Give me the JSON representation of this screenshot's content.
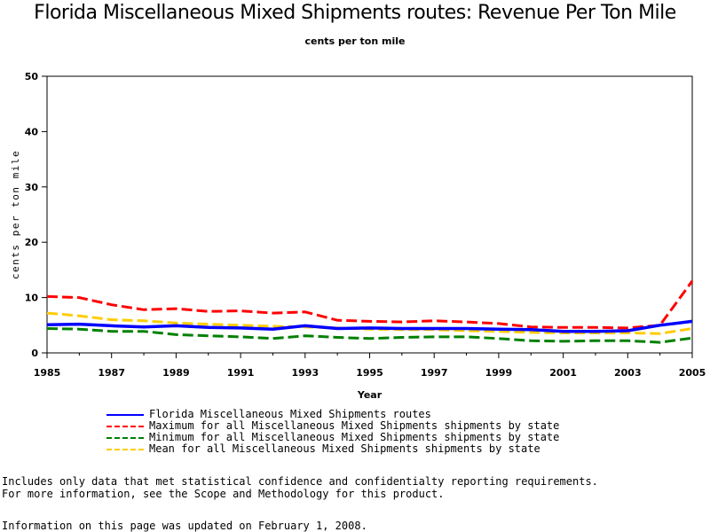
{
  "chart_data": {
    "type": "line",
    "title": "Florida Miscellaneous Mixed Shipments routes: Revenue Per Ton Mile",
    "subtitle": "cents per ton mile",
    "xlabel": "Year",
    "ylabel": "cents per ton mile",
    "xlim": [
      1985,
      2005
    ],
    "ylim": [
      0,
      50
    ],
    "x_ticks": [
      "1985",
      "1987",
      "1989",
      "1991",
      "1993",
      "1995",
      "1997",
      "1999",
      "2001",
      "2003",
      "2005"
    ],
    "y_ticks": [
      "0",
      "10",
      "20",
      "30",
      "40",
      "50"
    ],
    "grid": false,
    "legend_position": "bottom",
    "x": [
      1985,
      1986,
      1987,
      1988,
      1989,
      1990,
      1991,
      1992,
      1993,
      1994,
      1995,
      1996,
      1997,
      1998,
      1999,
      2000,
      2001,
      2002,
      2003,
      2004,
      2005
    ],
    "series": [
      {
        "name": "Florida Miscellaneous Mixed Shipments routes",
        "color": "#0000ff",
        "style": "solid",
        "values": [
          5.1,
          5.2,
          4.9,
          4.7,
          4.9,
          4.6,
          4.5,
          4.3,
          4.9,
          4.4,
          4.5,
          4.4,
          4.4,
          4.4,
          4.3,
          4.2,
          3.9,
          3.9,
          4.0,
          5.0,
          5.7
        ]
      },
      {
        "name": "Maximum for all Miscellaneous Mixed Shipments shipments by state",
        "color": "#ff0000",
        "style": "dashed",
        "values": [
          10.2,
          10.0,
          8.7,
          7.8,
          8.0,
          7.5,
          7.6,
          7.2,
          7.4,
          5.9,
          5.7,
          5.6,
          5.8,
          5.6,
          5.3,
          4.7,
          4.6,
          4.6,
          4.5,
          5.0,
          13.0
        ]
      },
      {
        "name": "Minimum for all Miscellaneous Mixed Shipments shipments by state",
        "color": "#008000",
        "style": "dashed",
        "values": [
          4.4,
          4.3,
          3.9,
          3.9,
          3.3,
          3.1,
          2.9,
          2.6,
          3.1,
          2.8,
          2.6,
          2.8,
          2.9,
          2.9,
          2.6,
          2.2,
          2.1,
          2.2,
          2.2,
          1.9,
          2.7
        ]
      },
      {
        "name": "Mean for all Miscellaneous Mixed Shipments shipments by state",
        "color": "#ffcc00",
        "style": "dashed",
        "values": [
          7.2,
          6.7,
          6.0,
          5.8,
          5.4,
          5.2,
          5.0,
          4.8,
          4.7,
          4.5,
          4.3,
          4.2,
          4.2,
          4.0,
          3.9,
          3.7,
          3.6,
          3.6,
          3.6,
          3.5,
          4.4
        ]
      }
    ]
  },
  "notes": {
    "line1": "Includes only data that met statistical confidence and confidentialty reporting requirements.",
    "line2": "For more information, see the Scope and Methodology for this product.",
    "updated": "Information on this page was updated on February 1, 2008."
  }
}
